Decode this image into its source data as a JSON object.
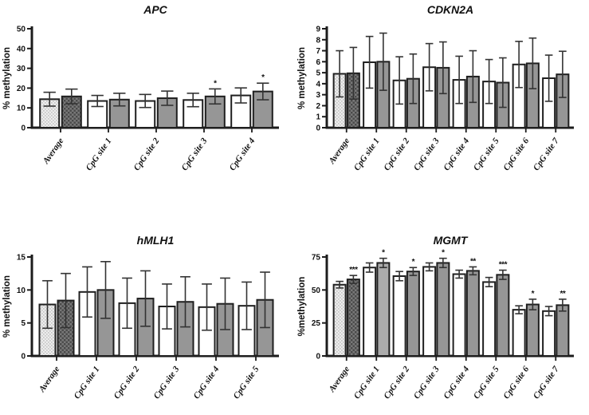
{
  "figure": {
    "description": "Four-panel bar figure of percent methylation per gene across CpG sites; each category has an open bar and a grey bar with error bars. Average columns use stippled (light) and cross-hatched (dark) fills.",
    "background": "#ffffff"
  },
  "colors": {
    "axis": "#1c1c1c",
    "text": "#111111",
    "bar_border": "#1f1f1f",
    "open_bar_fill": "#ffffff",
    "grey_bar_fill": "#969696",
    "grey_bar_fill_light": "#ababab",
    "average_open_pattern_bg": "#ededed",
    "average_open_pattern_dot": "#c6c6c6",
    "average_grey_pattern_bg": "#787878",
    "average_grey_pattern_dot": "#494949",
    "error_bar": "#333333"
  },
  "chart_data": [
    {
      "type": "bar",
      "title": "APC",
      "ylabel": "% methylation",
      "xlabel": "",
      "ylim": [
        0,
        50
      ],
      "yticks": [
        0,
        10,
        20,
        30,
        40,
        50
      ],
      "grid": false,
      "legend": "none",
      "categories": [
        "Average",
        "CpG site 1",
        "CpG site 2",
        "CpG site 3",
        "CpG site 4"
      ],
      "series": [
        {
          "name": "open-bars",
          "values": [
            14.4,
            13.5,
            13.5,
            14.0,
            16.3
          ],
          "errors": [
            3.5,
            2.8,
            3.3,
            3.4,
            3.8
          ]
        },
        {
          "name": "grey-bars",
          "values": [
            15.8,
            14.2,
            14.9,
            15.8,
            18.3
          ],
          "errors": [
            3.7,
            3.2,
            3.6,
            3.8,
            4.2
          ]
        }
      ],
      "significance": [
        "",
        "",
        "",
        "*",
        "*"
      ]
    },
    {
      "type": "bar",
      "title": "CDKN2A",
      "ylabel": "% methylation",
      "xlabel": "",
      "ylim": [
        0,
        9
      ],
      "yticks": [
        0,
        1,
        2,
        3,
        4,
        5,
        6,
        7,
        8,
        9
      ],
      "grid": false,
      "legend": "none",
      "categories": [
        "Average",
        "CpG site 1",
        "CpG site 2",
        "CpG site 3",
        "CpG site 4",
        "CpG site 5",
        "CpG site 6",
        "CpG site 7"
      ],
      "series": [
        {
          "name": "open-bars",
          "values": [
            4.9,
            5.95,
            4.3,
            5.5,
            4.35,
            4.2,
            5.75,
            4.5
          ],
          "errors": [
            2.1,
            2.35,
            2.15,
            2.15,
            2.15,
            2.0,
            2.1,
            2.1
          ]
        },
        {
          "name": "grey-bars",
          "values": [
            4.95,
            6.0,
            4.45,
            5.45,
            4.65,
            4.1,
            5.85,
            4.85
          ],
          "errors": [
            2.35,
            2.6,
            2.25,
            2.35,
            2.35,
            2.25,
            2.3,
            2.1
          ]
        }
      ],
      "significance": [
        "",
        "",
        "",
        "",
        "",
        "",
        "",
        ""
      ]
    },
    {
      "type": "bar",
      "title": "hMLH1",
      "ylabel": "% methylation",
      "xlabel": "",
      "ylim": [
        0,
        15
      ],
      "yticks": [
        0,
        5,
        10,
        15
      ],
      "grid": false,
      "legend": "none",
      "categories": [
        "Average",
        "CpG site 1",
        "CpG site 2",
        "CpG site 3",
        "CpG site 4",
        "CpG site 5"
      ],
      "series": [
        {
          "name": "open-bars",
          "values": [
            7.8,
            9.7,
            8.0,
            7.5,
            7.4,
            7.6
          ],
          "errors": [
            3.6,
            3.8,
            3.8,
            3.4,
            3.5,
            3.6
          ]
        },
        {
          "name": "grey-bars",
          "values": [
            8.4,
            10.0,
            8.7,
            8.2,
            7.9,
            8.5
          ],
          "errors": [
            4.1,
            4.3,
            4.2,
            3.8,
            3.9,
            4.2
          ]
        }
      ],
      "significance": [
        "",
        "",
        "",
        "",
        "",
        ""
      ]
    },
    {
      "type": "bar",
      "title": "MGMT",
      "ylabel": "%methylation",
      "xlabel": "",
      "ylim": [
        0,
        75
      ],
      "yticks": [
        0,
        25,
        50,
        75
      ],
      "grid": false,
      "legend": "none",
      "categories": [
        "Average",
        "CpG site 1",
        "CpG site 2",
        "CpG site 3",
        "CpG site 4",
        "CpG site 5",
        "CpG site 6",
        "CpG site 7"
      ],
      "series": [
        {
          "name": "open-bars",
          "values": [
            54,
            67,
            60.5,
            67.5,
            62,
            56,
            35,
            34
          ],
          "errors": [
            2.5,
            3.5,
            3.5,
            3.0,
            3.0,
            3.5,
            3.0,
            3.5
          ]
        },
        {
          "name": "grey-bars",
          "values": [
            58,
            70.5,
            64,
            70.5,
            64.5,
            61.5,
            39,
            38.5
          ],
          "errors": [
            3.0,
            3.5,
            3.0,
            3.5,
            3.0,
            3.5,
            4.0,
            4.5
          ],
          "light_fill_indices": [
            1
          ]
        }
      ],
      "significance": [
        "***",
        "*",
        "*",
        "*",
        "**",
        "***",
        "*",
        "**"
      ]
    }
  ]
}
